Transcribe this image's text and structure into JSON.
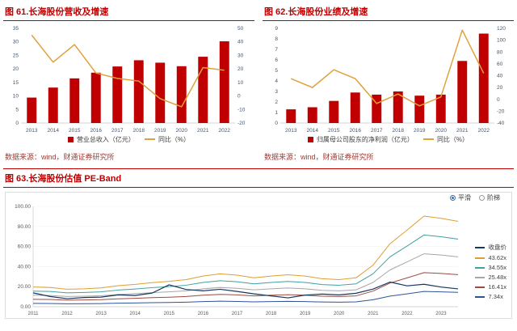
{
  "colors": {
    "background": "#FFFFFF",
    "title_red": "#C00000",
    "bar_red": "#C00000",
    "line_gold": "#DFA13A",
    "source_text": "#9E3B33",
    "axis_text": "#44546A",
    "panel_border": "#DCDCDC"
  },
  "fig61": {
    "title": "图 61.长海股份营收及增速",
    "source": "数据来源：wind，财通证券研究所"
  },
  "fig62": {
    "title": "图 62.长海股份业绩及增速",
    "source": "数据来源：wind，财通证券研究所"
  },
  "fig63": {
    "title": "图 63.长海股份估值 PE-Band",
    "controls": [
      {
        "label": "平滑",
        "selected": true
      },
      {
        "label": "阶梯",
        "selected": false
      }
    ]
  },
  "chart_data": [
    {
      "id": "fig61",
      "type": "bar",
      "title": "长海股份营收及增速",
      "categories": [
        "2013",
        "2014",
        "2015",
        "2016",
        "2017",
        "2018",
        "2019",
        "2020",
        "2021",
        "2022"
      ],
      "series": [
        {
          "name": "营业总收入（亿元）",
          "type": "bar",
          "axis": "left",
          "color": "#C00000",
          "values": [
            9.4,
            13.1,
            16.5,
            18.6,
            20.9,
            23.2,
            22.3,
            21.0,
            24.5,
            30.2
          ]
        },
        {
          "name": "同比（%）",
          "type": "line",
          "axis": "right",
          "color": "#DFA13A",
          "values": [
            45,
            25,
            38,
            17,
            13,
            11,
            -2,
            -8,
            21,
            19
          ]
        }
      ],
      "left_axis": {
        "min": 0,
        "max": 35,
        "step": 5
      },
      "right_axis": {
        "min": -20,
        "max": 50,
        "step": 10
      },
      "grid": false,
      "legend_position": "bottom"
    },
    {
      "id": "fig62",
      "type": "bar",
      "title": "长海股份业绩及增速",
      "categories": [
        "2013",
        "2014",
        "2015",
        "2016",
        "2017",
        "2018",
        "2019",
        "2020",
        "2021",
        "2022"
      ],
      "series": [
        {
          "name": "归属母公司股东的净利润（亿元）",
          "type": "bar",
          "axis": "left",
          "color": "#C00000",
          "values": [
            1.3,
            1.5,
            2.1,
            2.9,
            2.7,
            3.0,
            2.6,
            2.7,
            5.9,
            8.5
          ]
        },
        {
          "name": "同比（%）",
          "type": "line",
          "axis": "right",
          "color": "#DFA13A",
          "values": [
            35,
            20,
            50,
            35,
            -7,
            9,
            -11,
            4,
            117,
            44
          ]
        }
      ],
      "left_axis": {
        "min": 0,
        "max": 9,
        "step": 1
      },
      "right_axis": {
        "min": -40,
        "max": 120,
        "step": 20
      },
      "grid": false,
      "legend_position": "bottom"
    },
    {
      "id": "fig63",
      "type": "line",
      "title": "长海股份估值 PE-Band",
      "y_axis": {
        "min": 0,
        "max": 100,
        "step": 20
      },
      "ylim": [
        0,
        100
      ],
      "x_ticks": [
        {
          "index": 0,
          "label": "2011"
        },
        {
          "index": 2,
          "label": "2012"
        },
        {
          "index": 4,
          "label": "2013"
        },
        {
          "index": 6,
          "label": "2014"
        },
        {
          "index": 8,
          "label": "2015"
        },
        {
          "index": 10,
          "label": "2016"
        },
        {
          "index": 12,
          "label": "2017"
        },
        {
          "index": 14,
          "label": "2018"
        },
        {
          "index": 16,
          "label": "2019"
        },
        {
          "index": 18,
          "label": "2020"
        },
        {
          "index": 20,
          "label": "2021"
        },
        {
          "index": 22,
          "label": "2022"
        },
        {
          "index": 24,
          "label": "2023"
        }
      ],
      "pe_multiples": [
        43.62,
        34.55,
        25.48,
        16.41,
        7.34
      ],
      "band_colors": [
        "#DD9F33",
        "#3FA0A0",
        "#A6A6A6",
        "#9C4A42",
        "#2F5597"
      ],
      "eps_ttm": [
        0.45,
        0.44,
        0.4,
        0.41,
        0.43,
        0.48,
        0.51,
        0.55,
        0.58,
        0.62,
        0.7,
        0.75,
        0.72,
        0.66,
        0.7,
        0.73,
        0.7,
        0.64,
        0.62,
        0.66,
        0.95,
        1.44,
        1.75,
        2.07,
        2.02,
        1.95
      ],
      "close": [
        13.8,
        10.2,
        8.0,
        9.2,
        9.6,
        11.8,
        11.2,
        13.6,
        21.8,
        17.2,
        15.8,
        17.4,
        15.2,
        12.8,
        10.8,
        8.8,
        11.6,
        12.6,
        11.8,
        13.4,
        17.6,
        24.6,
        20.8,
        22.4,
        19.6,
        17.8
      ],
      "close_color": "#17375E",
      "legend": [
        {
          "label": "收盘价",
          "color": "#17375E"
        },
        {
          "label": "43.62x",
          "color": "#DD9F33"
        },
        {
          "label": "34.55x",
          "color": "#3FA0A0"
        },
        {
          "label": "25.48x",
          "color": "#A6A6A6"
        },
        {
          "label": "16.41x",
          "color": "#9C4A42"
        },
        {
          "label": "7.34x",
          "color": "#2F5597"
        }
      ],
      "legend_position": "right",
      "grid": true
    }
  ]
}
